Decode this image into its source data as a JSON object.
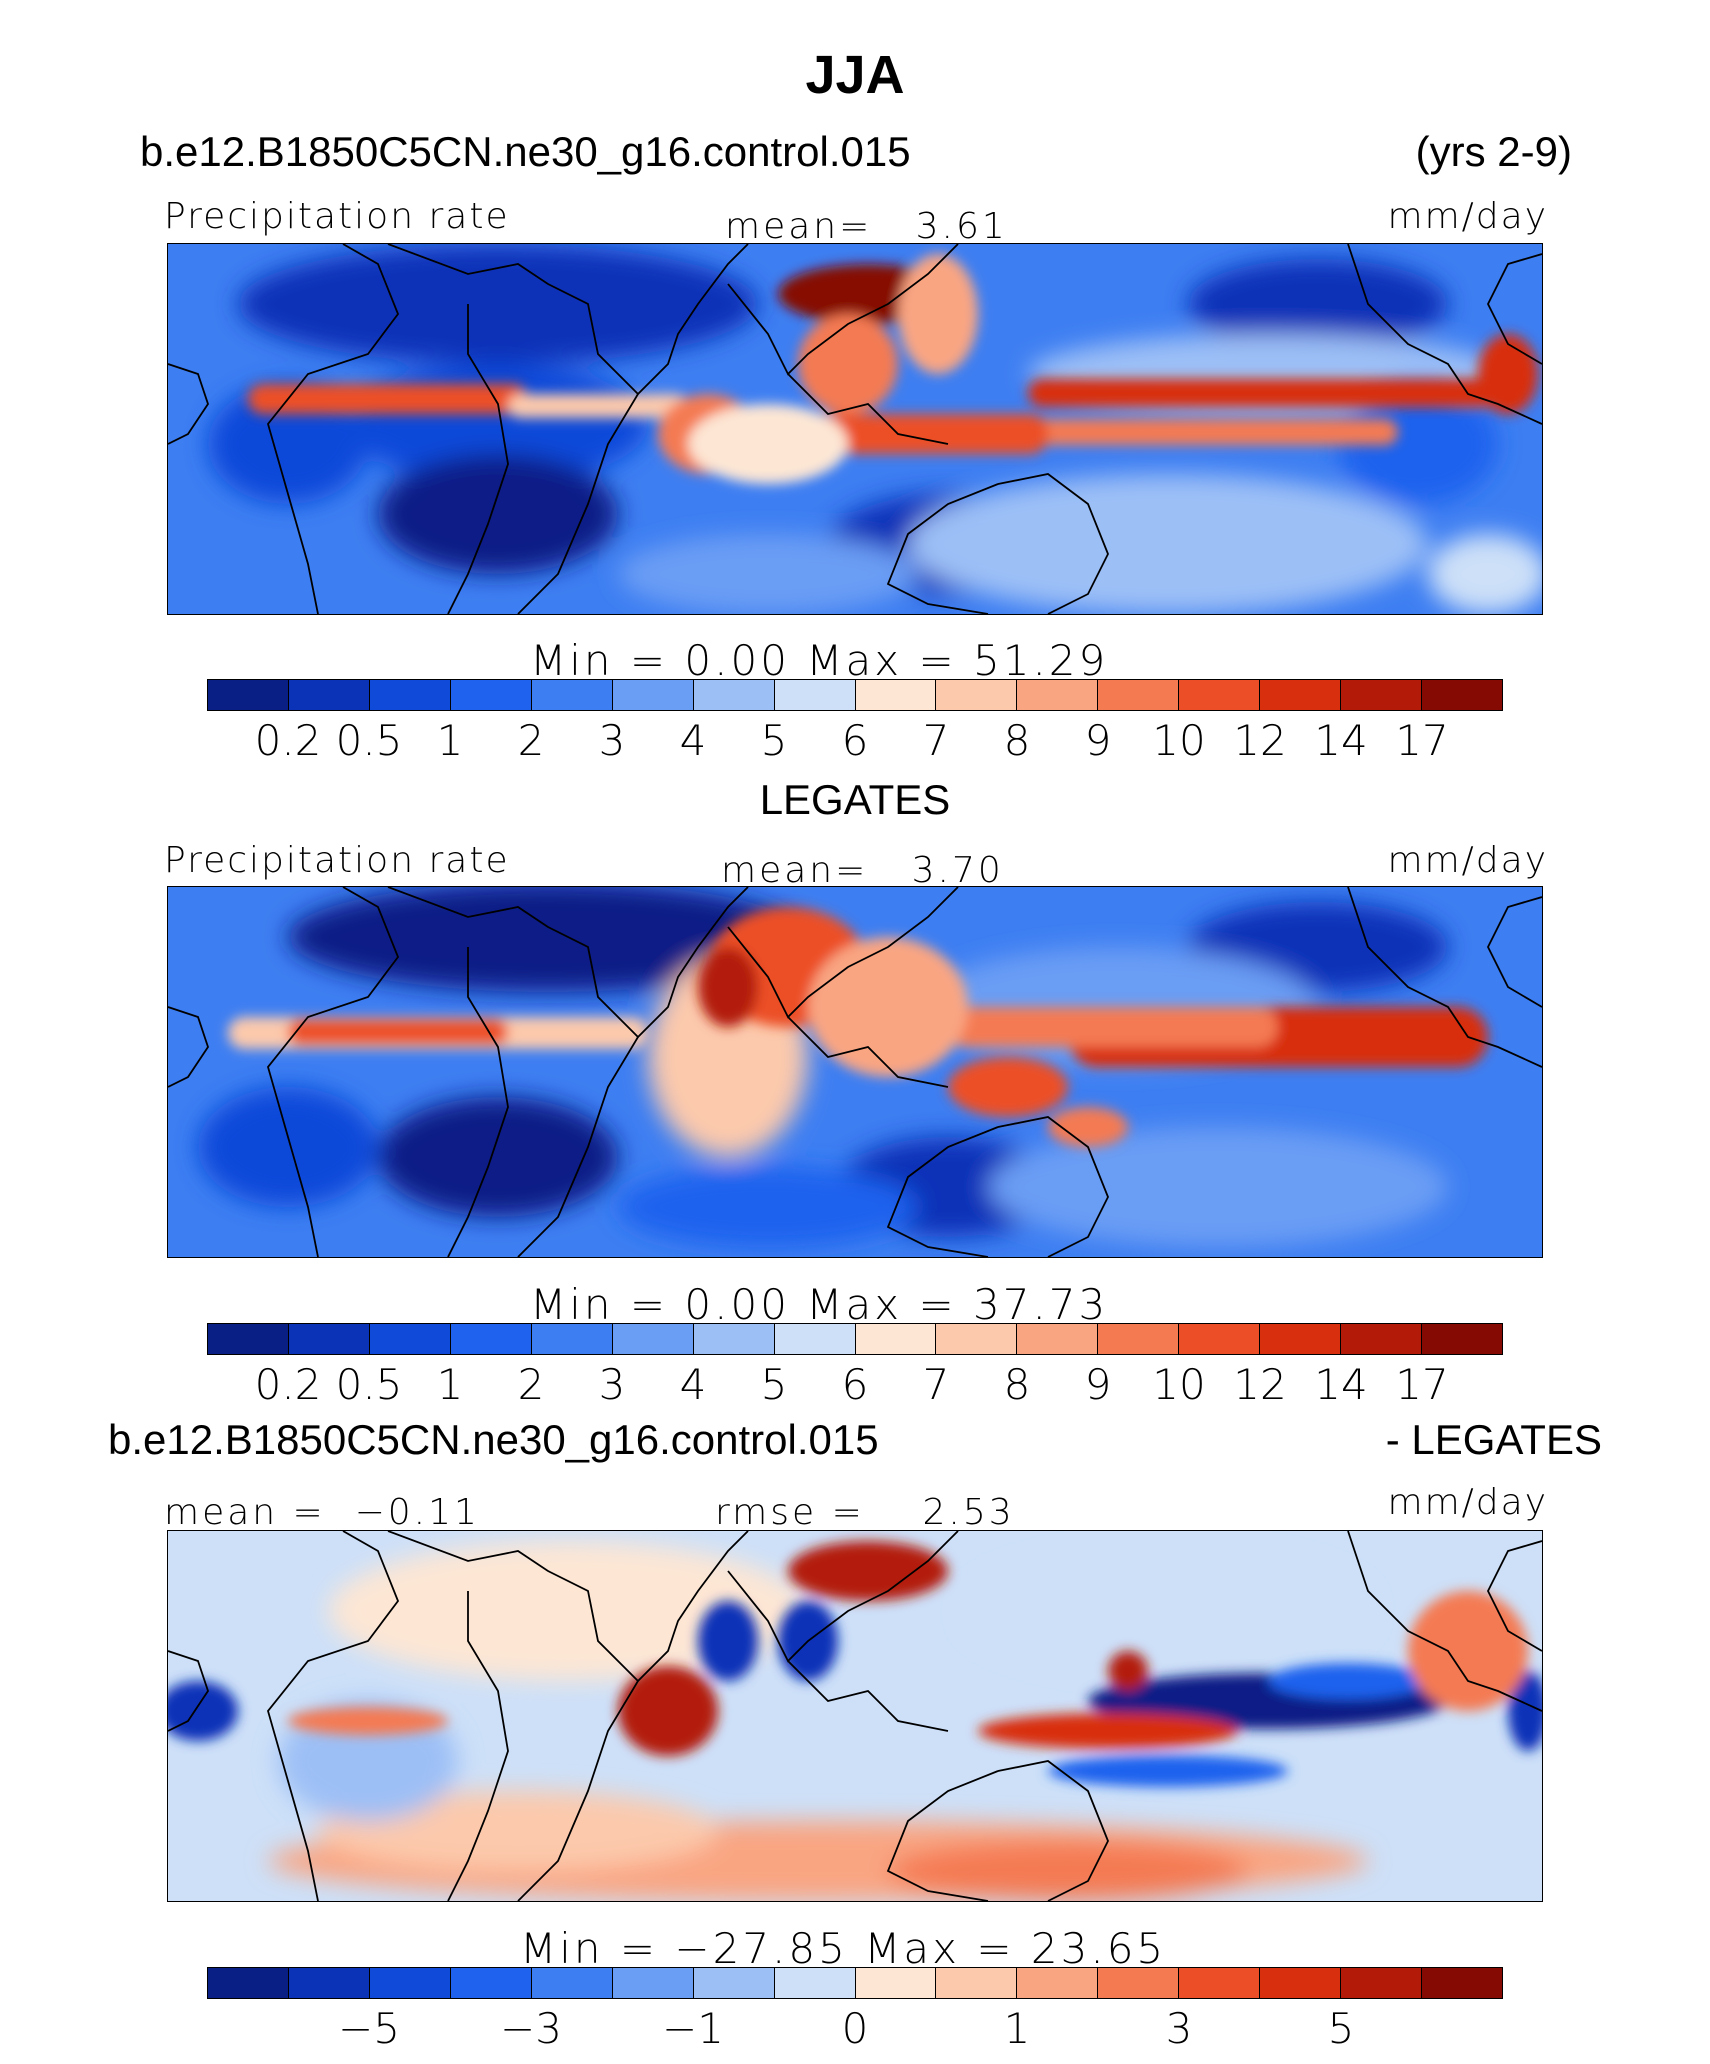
{
  "figure": {
    "season": "JJA",
    "case_name": "b.e12.B1850C5CN.ne30_g16.control.015",
    "years": "(yrs 2-9)",
    "obs_name": "LEGATES",
    "diff_title_left": "b.e12.B1850C5CN.ne30_g16.control.015",
    "diff_title_right": "- LEGATES"
  },
  "panels": [
    {
      "id": "model",
      "variable": "Precipitation rate",
      "stat_label": "mean=",
      "stat_value": "3.61",
      "units": "mm/day",
      "minmax": "Min  =     0.00  Max  =    51.29"
    },
    {
      "id": "obs",
      "variable": "Precipitation rate",
      "stat_label": "mean=",
      "stat_value": "3.70",
      "units": "mm/day",
      "minmax": "Min  =     0.00  Max  =    37.73"
    },
    {
      "id": "diff",
      "left_label": "mean  =",
      "left_value": "−0.11",
      "stat_label": "rmse  =",
      "stat_value": "2.53",
      "units": "mm/day",
      "minmax": "Min  =  −27.85  Max  =    23.65"
    }
  ],
  "colorbars": {
    "precip_colors": [
      "#0a1f86",
      "#0b33b8",
      "#0f4ad9",
      "#1f62ee",
      "#3d7ef2",
      "#6a9df4",
      "#9cbff6",
      "#cde0f8",
      "#fde6d4",
      "#fcc9ac",
      "#f9a582",
      "#f47a52",
      "#ec4f28",
      "#d82f0e",
      "#b31b08",
      "#860a04"
    ],
    "precip_ticks": [
      "0.2",
      "0.5",
      "1",
      "2",
      "3",
      "4",
      "5",
      "6",
      "7",
      "8",
      "9",
      "10",
      "12",
      "14",
      "17"
    ],
    "diff_colors": [
      "#0a1f86",
      "#0b33b8",
      "#0f4ad9",
      "#1f62ee",
      "#3d7ef2",
      "#6a9df4",
      "#9cbff6",
      "#cde0f8",
      "#fde6d4",
      "#fcc9ac",
      "#f9a582",
      "#f47a52",
      "#ec4f28",
      "#d82f0e",
      "#b31b08",
      "#860a04"
    ],
    "diff_ticks": [
      "−5",
      "−3",
      "−1",
      "0",
      "1",
      "3",
      "5"
    ]
  }
}
